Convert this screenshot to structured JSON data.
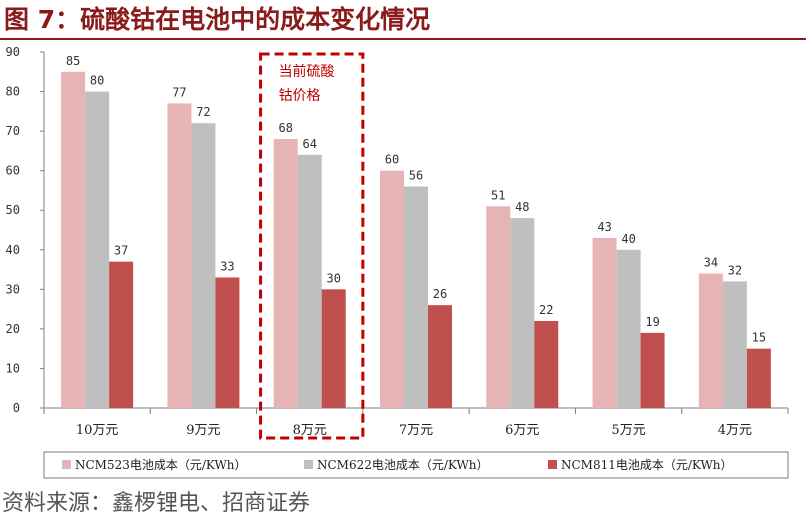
{
  "figure": {
    "title": "图 7：硫酸钴在电池中的成本变化情况",
    "source": "资料来源：鑫椤锂电、招商证券"
  },
  "annotation": {
    "lines": [
      "当前硫酸",
      "钴价格"
    ],
    "category_index": 2,
    "color": "#c00000"
  },
  "chart_data": {
    "type": "bar",
    "title": "",
    "xlabel": "",
    "ylabel": "",
    "ylim": [
      0,
      90
    ],
    "yticks": [
      0,
      10,
      20,
      30,
      40,
      50,
      60,
      70,
      80,
      90
    ],
    "grid": false,
    "legend_position": "bottom",
    "categories": [
      "10万元",
      "9万元",
      "8万元",
      "7万元",
      "6万元",
      "5万元",
      "4万元"
    ],
    "series": [
      {
        "name": "NCM523电池成本（元/KWh）",
        "values": [
          85,
          77,
          68,
          60,
          51,
          43,
          34
        ],
        "color": "#e6b4b4"
      },
      {
        "name": "NCM622电池成本（元/KWh）",
        "values": [
          80,
          72,
          64,
          56,
          48,
          40,
          32
        ],
        "color": "#bfbfbf"
      },
      {
        "name": "NCM811电池成本（元/KWh）",
        "values": [
          37,
          33,
          30,
          26,
          22,
          19,
          15
        ],
        "color": "#c0504d"
      }
    ]
  }
}
